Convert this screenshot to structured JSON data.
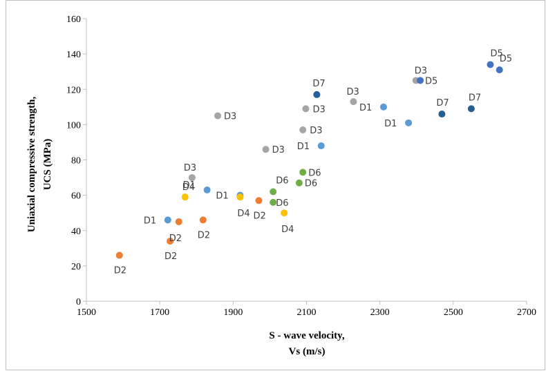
{
  "chart_data": {
    "type": "scatter",
    "title": "",
    "xlabel_lines": [
      "S - wave velocity,",
      "Vs (m/s)"
    ],
    "ylabel_lines": [
      "Uniaxial compressive strength,",
      "UCS (MPa)"
    ],
    "xlim": [
      1500,
      2700
    ],
    "ylim": [
      0,
      160
    ],
    "x_ticks": [
      1500,
      1700,
      1900,
      2100,
      2300,
      2500,
      2700
    ],
    "y_ticks": [
      0,
      20,
      40,
      60,
      80,
      100,
      120,
      140,
      160
    ],
    "grid": false,
    "legend": "none",
    "series": [
      {
        "name": "D1",
        "color": "#5b9bd5",
        "points": [
          {
            "x": 1722,
            "y": 46,
            "label": "D1"
          },
          {
            "x": 1829,
            "y": 63,
            "label": "D1"
          },
          {
            "x": 1919,
            "y": 60,
            "label": "D1"
          },
          {
            "x": 2140,
            "y": 88,
            "label": "D1"
          },
          {
            "x": 2310,
            "y": 110,
            "label": "D1"
          },
          {
            "x": 2378,
            "y": 101,
            "label": "D1"
          }
        ]
      },
      {
        "name": "D2",
        "color": "#ed7d31",
        "points": [
          {
            "x": 1590,
            "y": 26,
            "label": "D2"
          },
          {
            "x": 1728,
            "y": 34,
            "label": "D2"
          },
          {
            "x": 1818,
            "y": 46,
            "label": "D2"
          },
          {
            "x": 1970,
            "y": 57,
            "label": "D2"
          },
          {
            "x": 1752,
            "y": 45,
            "label": "D2"
          }
        ]
      },
      {
        "name": "D3",
        "color": "#a5a5a5",
        "points": [
          {
            "x": 1788,
            "y": 70,
            "label": "D3"
          },
          {
            "x": 1858,
            "y": 105,
            "label": "D3"
          },
          {
            "x": 1989,
            "y": 86,
            "label": "D3"
          },
          {
            "x": 2090,
            "y": 97,
            "label": "D3"
          },
          {
            "x": 2098,
            "y": 109,
            "label": "D3"
          },
          {
            "x": 2228,
            "y": 113,
            "label": "D3"
          },
          {
            "x": 2398,
            "y": 125,
            "label": "D3"
          }
        ]
      },
      {
        "name": "D4",
        "color": "#ffc000",
        "points": [
          {
            "x": 1769,
            "y": 59,
            "label": "D4"
          },
          {
            "x": 1919,
            "y": 59,
            "label": "D4"
          },
          {
            "x": 2039,
            "y": 50,
            "label": "D4"
          }
        ]
      },
      {
        "name": "D5",
        "color": "#4472c4",
        "points": [
          {
            "x": 2410,
            "y": 125,
            "label": "D5"
          },
          {
            "x": 2601,
            "y": 134,
            "label": "D5"
          },
          {
            "x": 2626,
            "y": 131,
            "label": "D5"
          }
        ]
      },
      {
        "name": "D6",
        "color": "#70ad47",
        "points": [
          {
            "x": 2009,
            "y": 62,
            "label": "D6"
          },
          {
            "x": 2009,
            "y": 56,
            "label": "D6"
          },
          {
            "x": 2080,
            "y": 67,
            "label": "D6"
          },
          {
            "x": 2090,
            "y": 73,
            "label": "D6"
          }
        ]
      },
      {
        "name": "D7",
        "color": "#255e91",
        "points": [
          {
            "x": 2128,
            "y": 117,
            "label": "D7"
          },
          {
            "x": 2469,
            "y": 106,
            "label": "D7"
          },
          {
            "x": 2549,
            "y": 109,
            "label": "D7"
          }
        ]
      }
    ]
  }
}
